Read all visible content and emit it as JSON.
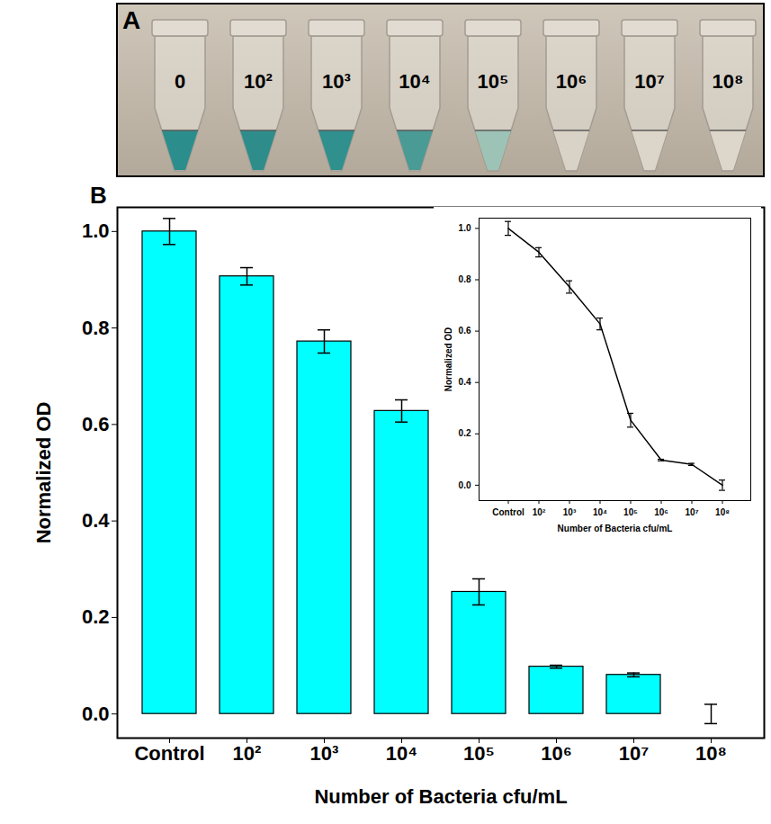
{
  "photo": {
    "panel_label": "A",
    "labels": [
      "0",
      "10²",
      "10³",
      "10⁴",
      "10⁵",
      "10⁶",
      "10⁷",
      "10⁸"
    ],
    "colors": [
      "#2b8e8c",
      "#2e8d8b",
      "#2f908e",
      "#4a9a96",
      "#9cc3b6",
      "#d9d2c6",
      "#dcd5c9",
      "#ddd6ca"
    ]
  },
  "chart_data": [
    {
      "type": "bar",
      "panel_label": "B",
      "categories": [
        "Control",
        "10²",
        "10³",
        "10⁴",
        "10⁵",
        "10⁶",
        "10⁷",
        "10⁸"
      ],
      "values": [
        1.0,
        0.907,
        0.772,
        0.628,
        0.253,
        0.098,
        0.081,
        0.0
      ],
      "errors": [
        0.027,
        0.018,
        0.024,
        0.023,
        0.027,
        0.003,
        0.004,
        0.02
      ],
      "color": "#00ffff",
      "x_label": "Number of Bacteria cfu/mL",
      "y_label": "Normalized OD",
      "ylim": [
        -0.05,
        1.05
      ],
      "yticks": [
        {
          "value": 0,
          "label": "0.0"
        },
        {
          "value": 0.2,
          "label": "0.2"
        },
        {
          "value": 0.4,
          "label": "0.4"
        },
        {
          "value": 0.6,
          "label": "0.6"
        },
        {
          "value": 0.8,
          "label": "0.8"
        },
        {
          "value": 1,
          "label": "1.0"
        }
      ],
      "grid": false
    },
    {
      "type": "line",
      "categories": [
        "Control",
        "10²",
        "10³",
        "10⁴",
        "10⁵",
        "10⁶",
        "10⁷",
        "10⁸"
      ],
      "values": [
        1.0,
        0.907,
        0.772,
        0.628,
        0.253,
        0.098,
        0.081,
        0.0
      ],
      "errors": [
        0.027,
        0.018,
        0.024,
        0.023,
        0.027,
        0.003,
        0.004,
        0.02
      ],
      "color": "#000000",
      "line_style": "solid",
      "x_label": "Number of Bacteria cfu/mL",
      "y_label": "Normalized OD",
      "ylim": [
        -0.06,
        1.04
      ],
      "yticks": [
        {
          "value": 0,
          "label": "0.0"
        },
        {
          "value": 0.2,
          "label": "0.2"
        },
        {
          "value": 0.4,
          "label": "0.4"
        },
        {
          "value": 0.6,
          "label": "0.6"
        },
        {
          "value": 0.8,
          "label": "0.8"
        },
        {
          "value": 1,
          "label": "1.0"
        }
      ],
      "grid": false
    }
  ]
}
